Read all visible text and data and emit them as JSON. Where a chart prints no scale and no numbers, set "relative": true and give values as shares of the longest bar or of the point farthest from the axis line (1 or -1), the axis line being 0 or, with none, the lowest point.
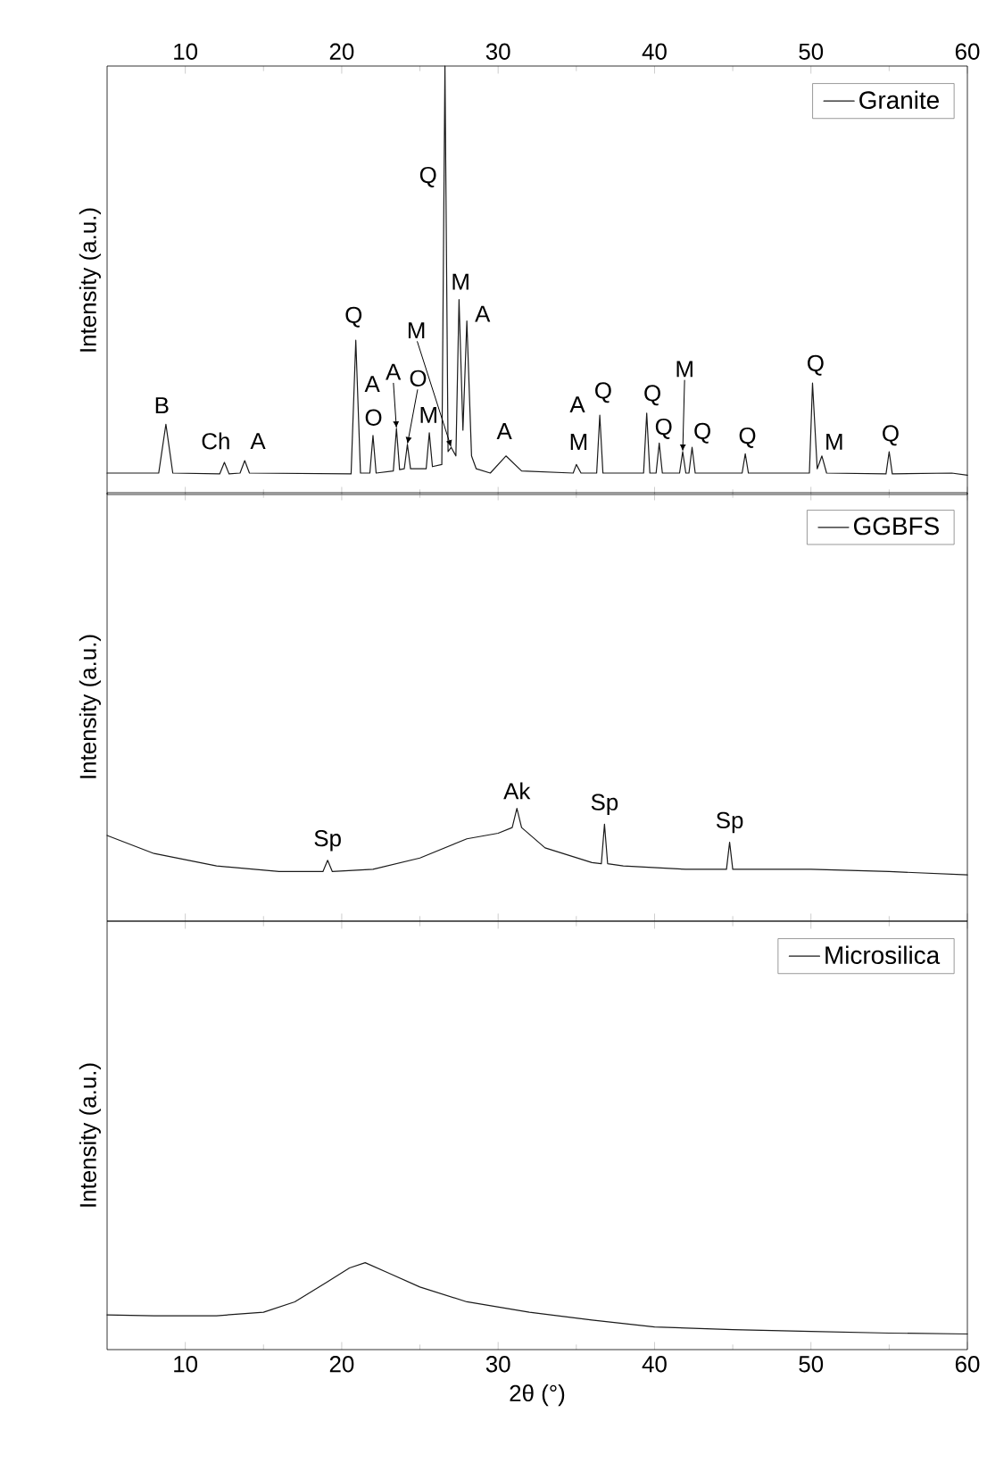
{
  "chart_data": [
    {
      "type": "line",
      "relative": true,
      "ylabel": "Intensity (a.u.)",
      "legend": "top right",
      "xlim": [
        5,
        60
      ],
      "xticks": [
        10,
        20,
        30,
        40,
        50,
        60
      ],
      "x": [
        5,
        8.3,
        8.76,
        9.2,
        12.2,
        12.5,
        12.8,
        13.5,
        13.8,
        14.1,
        20.6,
        20.9,
        21.2,
        21.8,
        22.0,
        22.2,
        23.3,
        23.5,
        23.7,
        24.0,
        24.2,
        24.4,
        25.4,
        25.6,
        25.8,
        26.4,
        26.6,
        26.8,
        27.0,
        27.3,
        27.5,
        27.75,
        28.0,
        28.3,
        28.6,
        29.5,
        30.5,
        31.5,
        34.8,
        35.0,
        35.3,
        36.3,
        36.5,
        36.7,
        39.3,
        39.5,
        39.7,
        40.1,
        40.3,
        40.5,
        41.6,
        41.8,
        42.0,
        42.2,
        42.4,
        42.6,
        45.6,
        45.8,
        46.0,
        49.9,
        50.1,
        50.4,
        50.7,
        51.0,
        54.8,
        55.0,
        55.2,
        59,
        60
      ],
      "series": [
        {
          "name": "Granite",
          "color": "#1a1a1a",
          "values": [
            0.05,
            0.05,
            0.164,
            0.05,
            0.048,
            0.075,
            0.048,
            0.05,
            0.079,
            0.05,
            0.048,
            0.36,
            0.05,
            0.05,
            0.138,
            0.05,
            0.055,
            0.154,
            0.058,
            0.06,
            0.117,
            0.06,
            0.06,
            0.144,
            0.065,
            0.07,
            1.0,
            0.1,
            0.11,
            0.09,
            0.455,
            0.15,
            0.405,
            0.09,
            0.06,
            0.05,
            0.09,
            0.055,
            0.05,
            0.07,
            0.05,
            0.05,
            0.185,
            0.05,
            0.05,
            0.19,
            0.05,
            0.05,
            0.12,
            0.05,
            0.05,
            0.1,
            0.05,
            0.05,
            0.11,
            0.05,
            0.05,
            0.095,
            0.05,
            0.05,
            0.26,
            0.06,
            0.09,
            0.05,
            0.048,
            0.1,
            0.048,
            0.05,
            0.045
          ]
        }
      ],
      "annotations": [
        {
          "text": "B",
          "x": 8.76,
          "y": 0.164
        },
        {
          "text": "Ch",
          "x": 12.5,
          "y": 0.075
        },
        {
          "text": "A",
          "x": 13.8,
          "y": 0.079
        },
        {
          "text": "Q",
          "x": 20.9,
          "y": 0.36
        },
        {
          "text": "A",
          "x": 22.0,
          "y": 0.138
        },
        {
          "text": "O",
          "x": 22.0,
          "y": 0.138
        },
        {
          "text": "A",
          "x": 23.5,
          "y": 0.154
        },
        {
          "text": "O",
          "x": 24.2,
          "y": 0.117
        },
        {
          "text": "M",
          "x": 25.6,
          "y": 0.144
        },
        {
          "text": "M",
          "x": 27.0,
          "y": 0.11
        },
        {
          "text": "Q",
          "x": 26.55,
          "y": 0.77
        },
        {
          "text": "M",
          "x": 27.5,
          "y": 0.455
        },
        {
          "text": "A",
          "x": 28.0,
          "y": 0.405
        },
        {
          "text": "A",
          "x": 30.5,
          "y": 0.09
        },
        {
          "text": "A",
          "x": 35.0,
          "y": 0.07
        },
        {
          "text": "M",
          "x": 35.0,
          "y": 0.07
        },
        {
          "text": "Q",
          "x": 36.5,
          "y": 0.185
        },
        {
          "text": "Q",
          "x": 39.5,
          "y": 0.19
        },
        {
          "text": "Q",
          "x": 40.3,
          "y": 0.12
        },
        {
          "text": "M",
          "x": 41.8,
          "y": 0.1
        },
        {
          "text": "Q",
          "x": 42.4,
          "y": 0.11
        },
        {
          "text": "Q",
          "x": 45.8,
          "y": 0.095
        },
        {
          "text": "Q",
          "x": 50.1,
          "y": 0.26
        },
        {
          "text": "M",
          "x": 50.7,
          "y": 0.09
        },
        {
          "text": "Q",
          "x": 55.0,
          "y": 0.1
        }
      ]
    },
    {
      "type": "line",
      "relative": true,
      "ylabel": "Intensity (a.u.)",
      "legend": "top right",
      "xlim": [
        5,
        60
      ],
      "xticks": [
        10,
        20,
        30,
        40,
        50,
        60
      ],
      "tick_labels": false,
      "x": [
        5,
        8,
        12,
        16,
        18.8,
        19.1,
        19.4,
        22,
        25,
        28,
        30,
        30.9,
        31.2,
        31.5,
        33,
        36,
        36.6,
        36.8,
        37.0,
        38,
        42,
        44.6,
        44.8,
        45.0,
        50,
        55,
        60
      ],
      "series": [
        {
          "name": "GGBFS",
          "color": "#1a1a1a",
          "values": [
            0.76,
            0.6,
            0.49,
            0.44,
            0.44,
            0.54,
            0.44,
            0.46,
            0.56,
            0.73,
            0.78,
            0.83,
            1.0,
            0.83,
            0.65,
            0.52,
            0.51,
            0.86,
            0.51,
            0.49,
            0.46,
            0.46,
            0.7,
            0.46,
            0.46,
            0.44,
            0.41
          ]
        }
      ],
      "annotations": [
        {
          "text": "Sp",
          "x": 19.1,
          "y": 0.54
        },
        {
          "text": "Ak",
          "x": 31.2,
          "y": 1.0
        },
        {
          "text": "Sp",
          "x": 36.8,
          "y": 0.86
        },
        {
          "text": "Sp",
          "x": 44.8,
          "y": 0.7
        }
      ]
    },
    {
      "type": "line",
      "relative": true,
      "ylabel": "Intensity (a.u.)",
      "xlabel": "2θ (°)",
      "legend": "top right",
      "xlim": [
        5,
        60
      ],
      "xticks": [
        10,
        20,
        30,
        40,
        50,
        60
      ],
      "x": [
        5,
        8,
        12,
        15,
        17,
        19,
        20.5,
        21.5,
        23,
        25,
        28,
        32,
        36,
        40,
        45,
        50,
        55,
        60
      ],
      "series": [
        {
          "name": "Microsilica",
          "color": "#1a1a1a",
          "values": [
            0.4,
            0.39,
            0.39,
            0.43,
            0.55,
            0.77,
            0.94,
            1.0,
            0.88,
            0.72,
            0.55,
            0.43,
            0.34,
            0.26,
            0.23,
            0.21,
            0.19,
            0.18
          ]
        }
      ]
    }
  ]
}
